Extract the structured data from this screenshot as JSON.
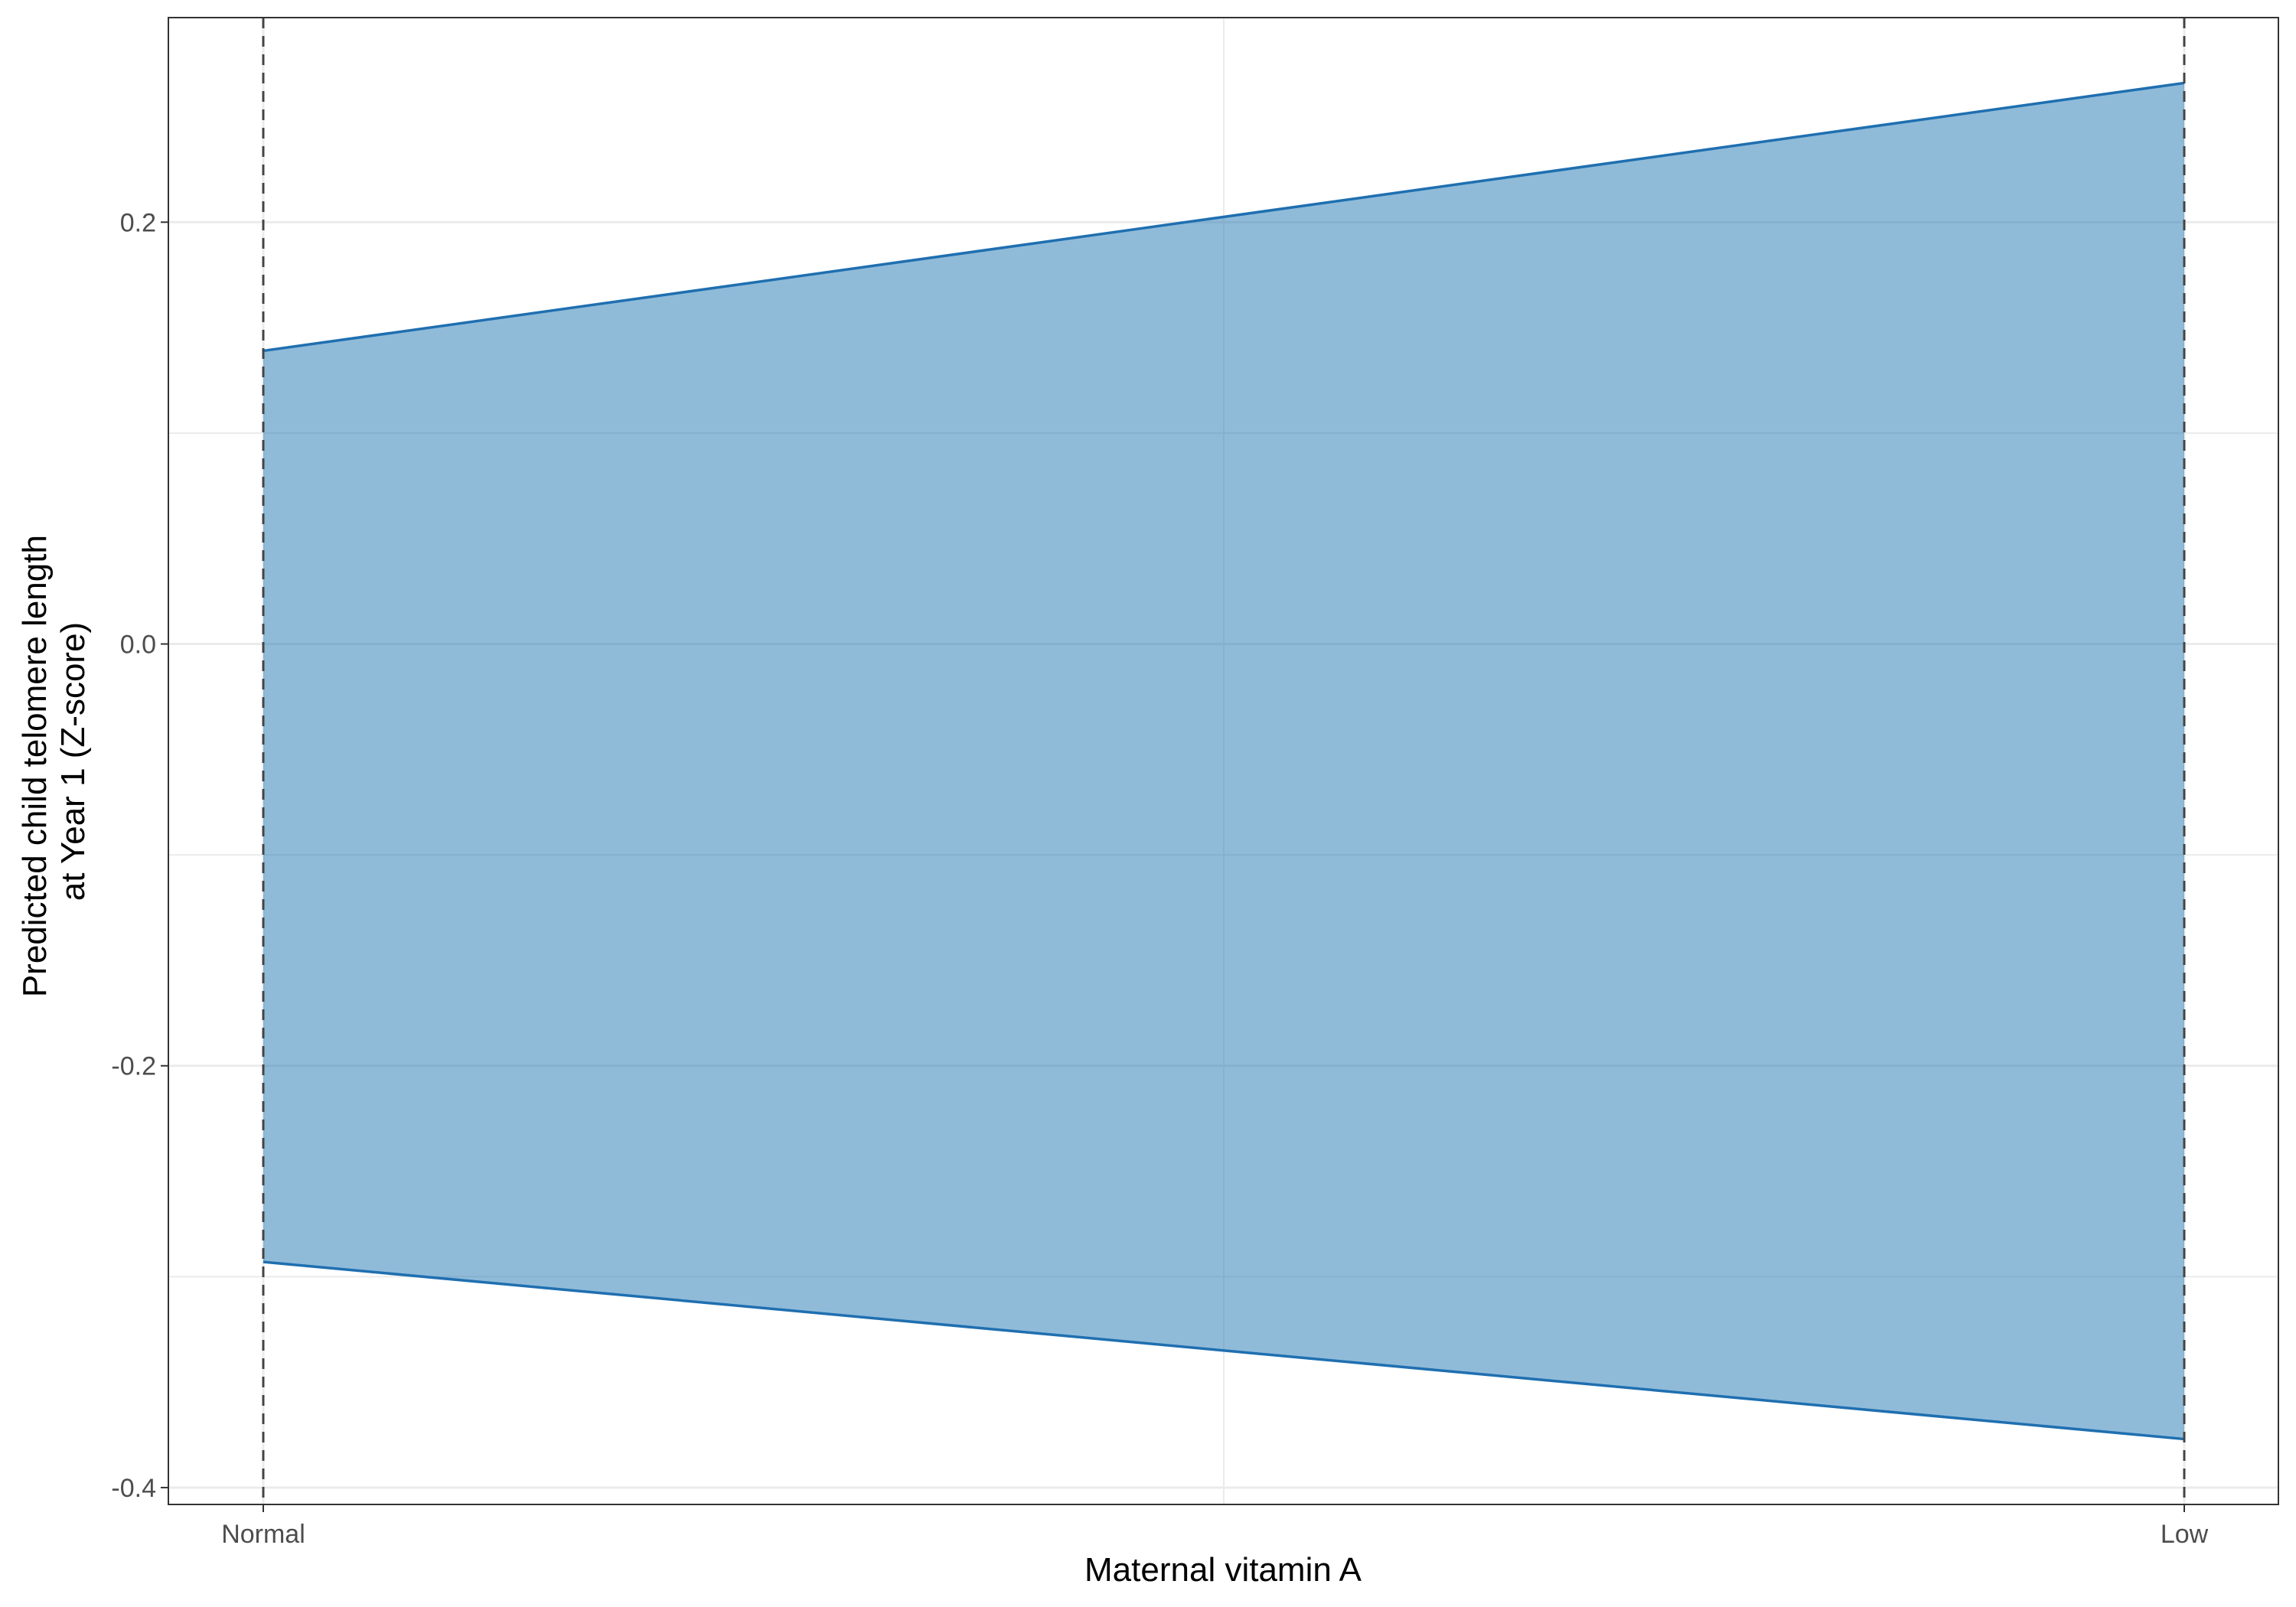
{
  "chart_data": {
    "type": "area",
    "title": "",
    "xlabel": "Maternal vitamin A",
    "ylabel_lines": [
      "Predicted child telomere length",
      "at Year 1 (Z-score)"
    ],
    "categories": [
      "Normal",
      "Low"
    ],
    "upper": [
      0.139,
      0.266
    ],
    "lower": [
      -0.293,
      -0.377
    ],
    "ylim": [
      -0.408,
      0.297
    ],
    "yticks": [
      0.2,
      0.0,
      -0.2,
      -0.4
    ],
    "ytick_labels": [
      "0.2",
      "0.0",
      "-0.2",
      "-0.4"
    ],
    "grid": true,
    "reference_lines": "dashed vertical at each category",
    "fill_color": "#1F77B4",
    "fill_opacity": 0.5,
    "line_color": "#1F6FB0",
    "refline_color": "#444444"
  }
}
